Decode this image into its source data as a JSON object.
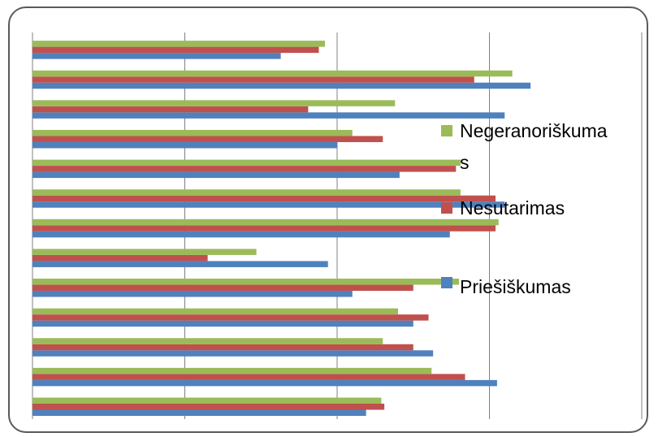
{
  "chart_data": {
    "type": "bar",
    "orientation": "horizontal",
    "categories": [
      "",
      "",
      "",
      "",
      "",
      "",
      "",
      "",
      "",
      "",
      "",
      "",
      ""
    ],
    "xlim": [
      0,
      4
    ],
    "grid": true,
    "legend_position": "right",
    "series": [
      {
        "name": "Priešiškumas",
        "color": "#4f81bd",
        "values": [
          2.19,
          3.05,
          2.63,
          2.5,
          2.1,
          1.94,
          2.74,
          3.1,
          2.41,
          2.0,
          3.1,
          3.27,
          1.63
        ]
      },
      {
        "name": "Nesutarimas",
        "color": "#c0504d",
        "values": [
          2.31,
          2.84,
          2.5,
          2.6,
          2.5,
          1.15,
          3.04,
          3.04,
          2.78,
          2.3,
          1.81,
          2.9,
          1.88
        ]
      },
      {
        "name": "Negeranoriškuma s",
        "color": "#9bbb59",
        "values": [
          2.29,
          2.62,
          2.3,
          2.4,
          2.8,
          1.47,
          3.06,
          2.81,
          2.81,
          2.1,
          2.38,
          3.15,
          1.92
        ]
      }
    ]
  },
  "legend": {
    "item1_line1": "Negeranoriškuma",
    "item1_line2": "s",
    "item2": "Nesutarimas",
    "item3": "Priešiškumas"
  }
}
